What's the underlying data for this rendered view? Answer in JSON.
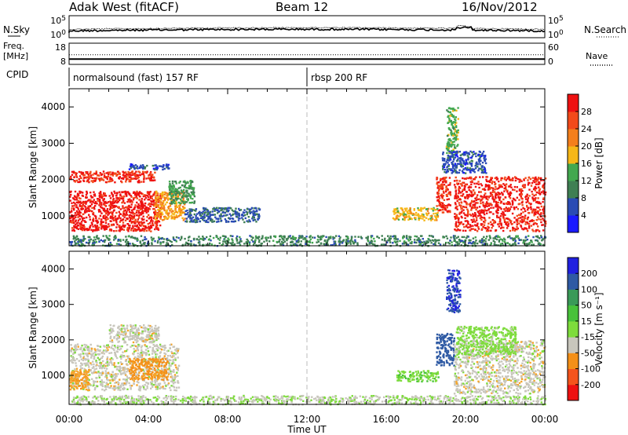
{
  "header": {
    "station": "Adak West (fitACF)",
    "beam": "Beam 12",
    "date": "16/Nov/2012"
  },
  "colors": {
    "power_scale": [
      "#1a1aff",
      "#2a4bb4",
      "#3f7f53",
      "#43a84f",
      "#f6b718",
      "#f47f1c",
      "#f24a1a",
      "#ee1111"
    ],
    "velocity_scale": [
      "#ee1111",
      "#f4541c",
      "#f49018",
      "#f5a52a",
      "#c8c6bc",
      "#7edc3c",
      "#48c23a",
      "#3a9a58",
      "#2f5aa4",
      "#2a3ad0",
      "#2020e0"
    ]
  },
  "chart_data": [
    {
      "type": "line",
      "name": "sky-noise-panel",
      "left_label": "N.Sky",
      "right_label": "N.Search",
      "left_ticks": [
        "10^5",
        "10^0"
      ],
      "right_ticks": [
        "10^5",
        "10^0"
      ],
      "note": "noise level trace across the day, nearly flat near 10^0"
    },
    {
      "type": "line",
      "name": "frequency-panel",
      "left_label": "Freq.",
      "left_unit": "[MHz]",
      "right_label": "Nave",
      "left_ticks": [
        "18",
        "8"
      ],
      "right_ticks": [
        "60",
        "0"
      ],
      "frequency_level_mhz": 10.5,
      "nave_level": 27
    },
    {
      "type": "table",
      "name": "cpid-strip",
      "label": "CPID",
      "segments": [
        {
          "start": "00:00",
          "text": "normalsound (fast) 157 RF"
        },
        {
          "start": "12:00",
          "text": "rbsp 200 RF"
        }
      ]
    },
    {
      "type": "heatmap",
      "name": "power-panel",
      "ylabel": "Slant Range [km]",
      "ylim": [
        180,
        4500
      ],
      "yticks": [
        "1000",
        "2000",
        "3000",
        "4000"
      ],
      "xlim_hours": [
        0,
        24
      ],
      "colorbar_label": "Power [dB]",
      "colorbar_ticks": [
        "4",
        "8",
        "12",
        "16",
        "20",
        "24",
        "28"
      ],
      "colorbar_range": [
        0,
        32
      ],
      "regions": [
        {
          "t": [
            0.0,
            4.6
          ],
          "r": [
            600,
            1700
          ],
          "value": 30
        },
        {
          "t": [
            0.0,
            4.3
          ],
          "r": [
            1950,
            2250
          ],
          "value": 28
        },
        {
          "t": [
            4.3,
            5.8
          ],
          "r": [
            900,
            1700
          ],
          "value": 20
        },
        {
          "t": [
            5.0,
            6.3
          ],
          "r": [
            1350,
            2000
          ],
          "value": 12
        },
        {
          "t": [
            3.0,
            5.0
          ],
          "r": [
            2300,
            2450
          ],
          "value": 6
        },
        {
          "t": [
            5.8,
            9.6
          ],
          "r": [
            850,
            1250
          ],
          "value": 7
        },
        {
          "t": [
            16.3,
            18.6
          ],
          "r": [
            900,
            1250
          ],
          "value": 18
        },
        {
          "t": [
            18.5,
            19.2
          ],
          "r": [
            1100,
            2100
          ],
          "value": 28
        },
        {
          "t": [
            19.0,
            19.6
          ],
          "r": [
            2700,
            4000
          ],
          "value": 14
        },
        {
          "t": [
            19.4,
            24.0
          ],
          "r": [
            600,
            2100
          ],
          "value": 29
        },
        {
          "t": [
            18.8,
            21.0
          ],
          "r": [
            2200,
            2800
          ],
          "value": 6
        },
        {
          "t": [
            0.0,
            24.0
          ],
          "r": [
            200,
            480
          ],
          "value": 10
        }
      ]
    },
    {
      "type": "heatmap",
      "name": "velocity-panel",
      "ylabel": "Slant Range [km]",
      "ylim": [
        180,
        4500
      ],
      "yticks": [
        "1000",
        "2000",
        "3000",
        "4000"
      ],
      "xlim_hours": [
        0,
        24
      ],
      "xticks": [
        "00:00",
        "04:00",
        "08:00",
        "12:00",
        "16:00",
        "20:00",
        "00:00"
      ],
      "xlabel": "Time UT",
      "colorbar_label": "Velocity [m s-1]",
      "colorbar_ticks": [
        "-200",
        "-100",
        "-50",
        "-15",
        "15",
        "50",
        "100",
        "200"
      ],
      "colorbar_range": [
        -250,
        250
      ],
      "regions": [
        {
          "t": [
            0.0,
            5.5
          ],
          "r": [
            600,
            1900
          ],
          "value": 0
        },
        {
          "t": [
            3.0,
            5.0
          ],
          "r": [
            900,
            1500
          ],
          "value": -60
        },
        {
          "t": [
            0.0,
            1.0
          ],
          "r": [
            600,
            1200
          ],
          "value": -40
        },
        {
          "t": [
            2.0,
            4.5
          ],
          "r": [
            1950,
            2450
          ],
          "value": 0
        },
        {
          "t": [
            16.5,
            18.6
          ],
          "r": [
            850,
            1150
          ],
          "value": 40
        },
        {
          "t": [
            18.5,
            19.4
          ],
          "r": [
            1300,
            2200
          ],
          "value": 180
        },
        {
          "t": [
            19.0,
            19.7
          ],
          "r": [
            2800,
            4000
          ],
          "value": 200
        },
        {
          "t": [
            19.4,
            24.0
          ],
          "r": [
            500,
            2000
          ],
          "value": 0
        },
        {
          "t": [
            19.5,
            22.5
          ],
          "r": [
            1600,
            2400
          ],
          "value": 30
        },
        {
          "t": [
            0.0,
            24.0
          ],
          "r": [
            200,
            450
          ],
          "value": 10
        }
      ]
    }
  ]
}
